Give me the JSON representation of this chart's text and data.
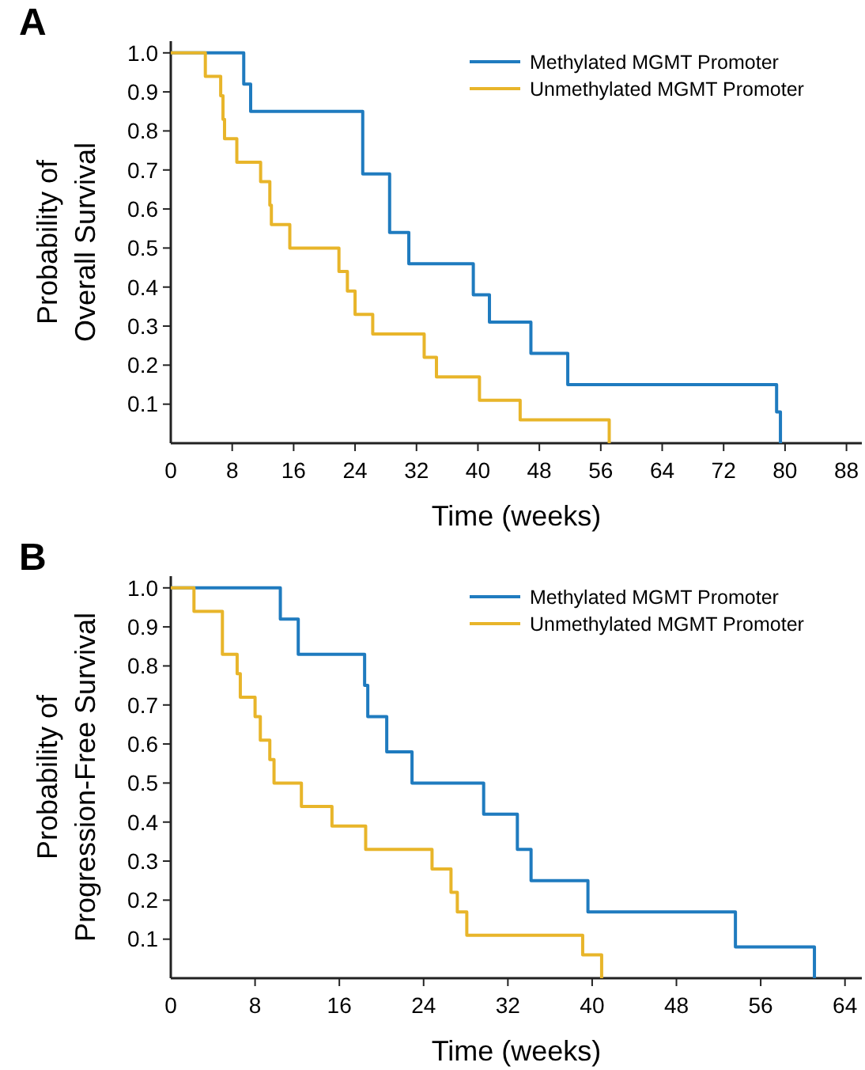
{
  "chart_data": [
    {
      "type": "step",
      "title": "A",
      "xlabel": "Time (weeks)",
      "ylabel": "Probability of\nOverall Survival",
      "xlim": [
        0,
        90
      ],
      "xticks": [
        0,
        8,
        16,
        24,
        32,
        40,
        48,
        56,
        64,
        72,
        80,
        88
      ],
      "ylim": [
        0,
        1.03
      ],
      "yticks": [
        0.1,
        0.2,
        0.3,
        0.4,
        0.5,
        0.6,
        0.7,
        0.8,
        0.9,
        {
          "value": 1,
          "label": "1.0"
        }
      ],
      "legend": "top right",
      "grid": false,
      "line_style": "solid",
      "marker": "none",
      "series": [
        {
          "name": "Methylated MGMT Promoter",
          "color": "#1f7bbf",
          "x": [
            0,
            9.5,
            10.4,
            25,
            28.5,
            31,
            39.4,
            41.5,
            46.9,
            51.7,
            78.9,
            79.4
          ],
          "values": [
            1,
            0.92,
            0.85,
            0.69,
            0.54,
            0.46,
            0.38,
            0.31,
            0.23,
            0.15,
            0.08,
            0
          ]
        },
        {
          "name": "Unmethylated MGMT Promoter",
          "color": "#e8b52a",
          "x": [
            0,
            4.5,
            6.5,
            6.8,
            7.0,
            8.6,
            11.7,
            12.9,
            13.1,
            15.5,
            21.9,
            23,
            24,
            26.3,
            33,
            34.6,
            40.2,
            45.5,
            57.1
          ],
          "values": [
            1,
            0.94,
            0.89,
            0.83,
            0.78,
            0.72,
            0.67,
            0.61,
            0.56,
            0.5,
            0.44,
            0.39,
            0.33,
            0.28,
            0.22,
            0.17,
            0.11,
            0.06,
            0
          ]
        }
      ]
    },
    {
      "type": "step",
      "title": "B",
      "xlabel": "Time (weeks)",
      "ylabel": "Probability of\nProgression-Free Survival",
      "xlim": [
        0,
        65.6
      ],
      "xticks": [
        0,
        8,
        16,
        24,
        32,
        40,
        48,
        56,
        64
      ],
      "ylim": [
        0,
        1.03
      ],
      "yticks": [
        0.1,
        0.2,
        0.3,
        0.4,
        0.5,
        0.6,
        0.7,
        0.8,
        0.9,
        {
          "value": 1,
          "label": "1.0"
        }
      ],
      "legend": "top right",
      "grid": false,
      "line_style": "solid",
      "marker": "none",
      "series": [
        {
          "name": "Methylated MGMT Promoter",
          "color": "#1f7bbf",
          "x": [
            0,
            10.4,
            12.1,
            18.4,
            18.7,
            20.5,
            22.9,
            29.7,
            32.9,
            34.2,
            39.6,
            53.6,
            61.1
          ],
          "values": [
            1,
            0.92,
            0.83,
            0.75,
            0.67,
            0.58,
            0.5,
            0.42,
            0.33,
            0.25,
            0.17,
            0.08,
            0
          ]
        },
        {
          "name": "Unmethylated MGMT Promoter",
          "color": "#e8b52a",
          "x": [
            0,
            2.2,
            4.9,
            6.3,
            6.6,
            8,
            8.5,
            9.4,
            9.8,
            12.4,
            15.3,
            18.5,
            24.8,
            26.6,
            27.2,
            28.1,
            39.1,
            40.9
          ],
          "values": [
            1,
            0.94,
            0.83,
            0.78,
            0.72,
            0.67,
            0.61,
            0.56,
            0.5,
            0.44,
            0.39,
            0.33,
            0.28,
            0.22,
            0.17,
            0.11,
            0.06,
            0
          ]
        }
      ]
    }
  ]
}
